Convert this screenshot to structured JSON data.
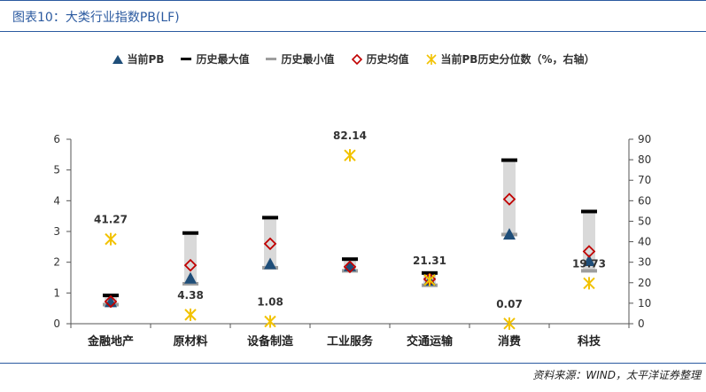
{
  "title": "图表10：大类行业指数PB(LF)",
  "source": "资料来源：WIND，太平洋证券整理",
  "legend": [
    {
      "label": "当前PB",
      "symbol": "triangle",
      "color": "#1f4e79"
    },
    {
      "label": "历史最大值",
      "symbol": "dash",
      "color": "#000000"
    },
    {
      "label": "历史最小值",
      "symbol": "dash",
      "color": "#9e9e9e"
    },
    {
      "label": "历史均值",
      "symbol": "diamond",
      "color": "#c00000"
    },
    {
      "label": "当前PB历史分位数（%，右轴）",
      "symbol": "star",
      "color": "#f2c200"
    }
  ],
  "chart_data": {
    "type": "scatter",
    "categories": [
      "金融地产",
      "原材料",
      "设备制造",
      "工业服务",
      "交通运输",
      "消费",
      "科技"
    ],
    "series": [
      {
        "name": "当前PB",
        "axis": "left",
        "values": [
          0.68,
          1.45,
          1.92,
          1.85,
          1.38,
          2.88,
          2.02
        ]
      },
      {
        "name": "历史最大值",
        "axis": "left",
        "values": [
          0.92,
          2.95,
          3.45,
          2.1,
          1.65,
          5.32,
          3.65
        ]
      },
      {
        "name": "历史最小值",
        "axis": "left",
        "values": [
          0.62,
          1.3,
          1.82,
          1.72,
          1.25,
          2.9,
          1.72
        ]
      },
      {
        "name": "历史均值",
        "axis": "left",
        "values": [
          0.72,
          1.9,
          2.6,
          1.85,
          1.45,
          4.05,
          2.35
        ]
      },
      {
        "name": "当前PB历史分位数（%，右轴）",
        "axis": "right",
        "values": [
          41.27,
          4.38,
          1.08,
          82.14,
          21.31,
          0.07,
          19.73
        ]
      }
    ],
    "data_labels": [
      "41.27",
      "4.38",
      "1.08",
      "82.14",
      "21.31",
      "0.07",
      "19.73"
    ],
    "ylim_left": [
      0,
      6
    ],
    "yticks_left": [
      0,
      1,
      2,
      3,
      4,
      5,
      6
    ],
    "ylim_right": [
      0,
      90
    ],
    "yticks_right": [
      0,
      10,
      20,
      30,
      40,
      50,
      60,
      70,
      80,
      90
    ]
  }
}
